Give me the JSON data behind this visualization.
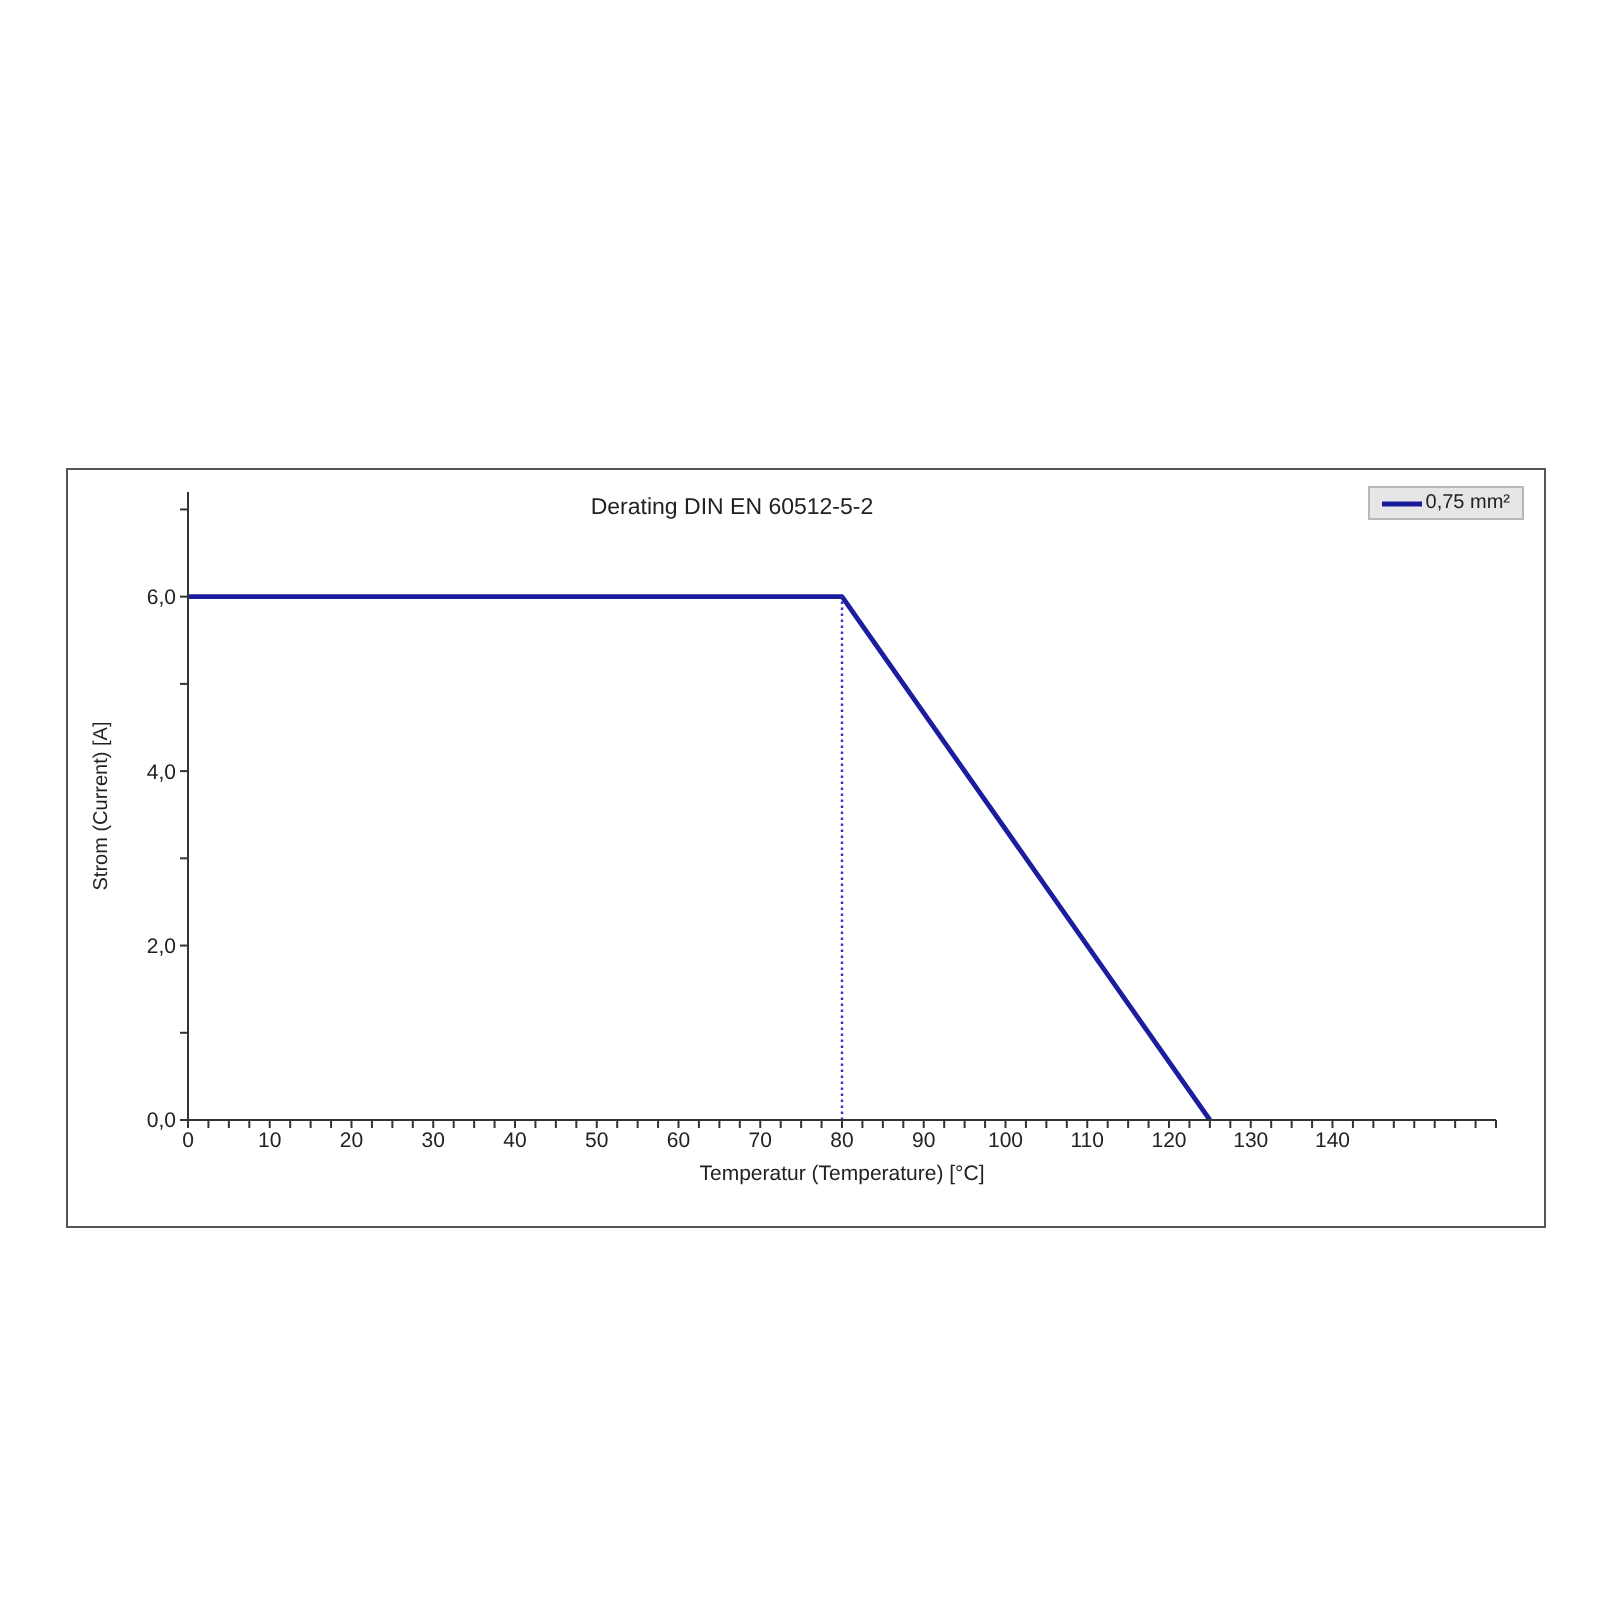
{
  "chart_data": {
    "type": "line",
    "title": "Derating DIN EN 60512-5-2",
    "xlabel": "Temperatur (Temperature) [°C]",
    "ylabel": "Strom (Current) [A]",
    "series": [
      {
        "name": "0,75 mm²",
        "color": "#1c1c9e",
        "x": [
          0,
          80,
          125
        ],
        "values": [
          6,
          6,
          0
        ]
      },
      {
        "type": "line",
        "color": "#3535c4",
        "x": [
          80,
          80
        ],
        "values": [
          0,
          6
        ],
        "line_style": "dotted"
      }
    ],
    "xlim": [
      0,
      160
    ],
    "xticks": [
      0,
      {
        "value": 2.5,
        "label": null
      },
      {
        "value": 5,
        "label": null
      },
      {
        "value": 7.5,
        "label": null
      },
      10,
      {
        "value": 12.5,
        "label": null
      },
      {
        "value": 15,
        "label": null
      },
      {
        "value": 17.5,
        "label": null
      },
      20,
      {
        "value": 22.5,
        "label": null
      },
      {
        "value": 25,
        "label": null
      },
      {
        "value": 27.5,
        "label": null
      },
      30,
      {
        "value": 32.5,
        "label": null
      },
      {
        "value": 35,
        "label": null
      },
      {
        "value": 37.5,
        "label": null
      },
      40,
      {
        "value": 42.5,
        "label": null
      },
      {
        "value": 45,
        "label": null
      },
      {
        "value": 47.5,
        "label": null
      },
      50,
      {
        "value": 52.5,
        "label": null
      },
      {
        "value": 55,
        "label": null
      },
      {
        "value": 57.5,
        "label": null
      },
      60,
      {
        "value": 62.5,
        "label": null
      },
      {
        "value": 65,
        "label": null
      },
      {
        "value": 67.5,
        "label": null
      },
      70,
      {
        "value": 72.5,
        "label": null
      },
      {
        "value": 75,
        "label": null
      },
      {
        "value": 77.5,
        "label": null
      },
      80,
      {
        "value": 82.5,
        "label": null
      },
      {
        "value": 85,
        "label": null
      },
      {
        "value": 87.5,
        "label": null
      },
      90,
      {
        "value": 92.5,
        "label": null
      },
      {
        "value": 95,
        "label": null
      },
      {
        "value": 97.5,
        "label": null
      },
      100,
      {
        "value": 102.5,
        "label": null
      },
      {
        "value": 105,
        "label": null
      },
      {
        "value": 107.5,
        "label": null
      },
      110,
      {
        "value": 112.5,
        "label": null
      },
      {
        "value": 115,
        "label": null
      },
      {
        "value": 117.5,
        "label": null
      },
      120,
      {
        "value": 122.5,
        "label": null
      },
      {
        "value": 125,
        "label": null
      },
      {
        "value": 127.5,
        "label": null
      },
      130,
      {
        "value": 132.5,
        "label": null
      },
      {
        "value": 135,
        "label": null
      },
      {
        "value": 137.5,
        "label": null
      },
      140,
      {
        "value": 142.5,
        "label": null
      },
      {
        "value": 145,
        "label": null
      },
      {
        "value": 147.5,
        "label": null
      },
      {
        "value": 150,
        "label": null
      },
      {
        "value": 152.5,
        "label": null
      },
      {
        "value": 155,
        "label": null
      },
      {
        "value": 157.5,
        "label": null
      },
      {
        "value": 160,
        "label": null
      }
    ],
    "ylim": [
      0,
      7.2
    ],
    "yticks": [
      {
        "value": 0,
        "label": "0,0"
      },
      {
        "value": 1,
        "label": null
      },
      {
        "value": 2,
        "label": "2,0"
      },
      {
        "value": 3,
        "label": null
      },
      {
        "value": 4,
        "label": "4,0"
      },
      {
        "value": 5,
        "label": null
      },
      {
        "value": 6,
        "label": "6,0"
      },
      {
        "value": 7,
        "label": null
      }
    ],
    "legend": "top right"
  }
}
